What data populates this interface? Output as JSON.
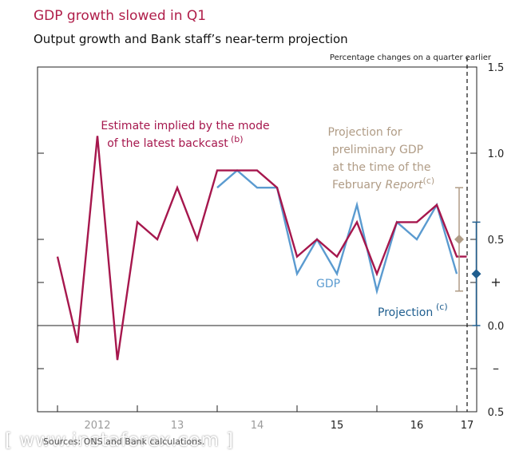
{
  "title": "GDP growth slowed in Q1",
  "subtitle": "Output growth and Bank staff’s near-term projection",
  "unit_note": "Percentage changes on a quarter earlier",
  "sources": "Sources: ONS and Bank calculations.",
  "watermark": "[ www.instaforex.com ]",
  "colors": {
    "backcast": "#a6174d",
    "gdp": "#5b9bd0",
    "feb_projection": "#b09c86",
    "projection": "#1f5e8f",
    "axis": "#222222"
  },
  "chart_data": {
    "type": "line",
    "title": "GDP growth slowed in Q1",
    "subtitle": "Output growth and Bank staff’s near-term projection",
    "ylabel": "Percentage changes on a quarter earlier",
    "ylim": [
      -0.5,
      1.5
    ],
    "yticks": [
      {
        "value": 1.5,
        "label": "1.5"
      },
      {
        "value": 1.0,
        "label": "1.0"
      },
      {
        "value": 0.5,
        "label": "0.5"
      },
      {
        "value": 0.25,
        "label": "+"
      },
      {
        "value": 0.0,
        "label": "0.0"
      },
      {
        "value": -0.25,
        "label": "–"
      },
      {
        "value": -0.5,
        "label": "0.5"
      }
    ],
    "xlim": [
      2011.75,
      2017.25
    ],
    "xticks": [
      {
        "value": 2012.5,
        "label": "2012"
      },
      {
        "value": 2013.5,
        "label": "13"
      },
      {
        "value": 2014.5,
        "label": "14"
      },
      {
        "value": 2015.5,
        "label": "15"
      },
      {
        "value": 2016.5,
        "label": "16"
      },
      {
        "value": 2017.0,
        "label": "17"
      }
    ],
    "grid": false,
    "projection_start": 2017.0,
    "series": [
      {
        "name": "Estimate implied by the mode of the latest backcast",
        "label_sup": "(b)",
        "x": [
          2012.0,
          2012.25,
          2012.5,
          2012.75,
          2013.0,
          2013.25,
          2013.5,
          2013.75,
          2014.0,
          2014.25,
          2014.5,
          2014.75,
          2015.0,
          2015.25,
          2015.5,
          2015.75,
          2016.0,
          2016.25,
          2016.5,
          2016.75,
          2017.0,
          2017.125
        ],
        "values": [
          0.4,
          -0.1,
          1.1,
          -0.2,
          0.6,
          0.5,
          0.8,
          0.5,
          0.9,
          0.9,
          0.9,
          0.8,
          0.4,
          0.5,
          0.4,
          0.6,
          0.3,
          0.6,
          0.6,
          0.7,
          0.4,
          0.4
        ]
      },
      {
        "name": "GDP",
        "x": [
          2014.0,
          2014.25,
          2014.5,
          2014.75,
          2015.0,
          2015.25,
          2015.5,
          2015.75,
          2016.0,
          2016.25,
          2016.5,
          2016.75,
          2017.0
        ],
        "values": [
          0.8,
          0.9,
          0.8,
          0.8,
          0.3,
          0.5,
          0.3,
          0.7,
          0.2,
          0.6,
          0.5,
          0.7,
          0.3
        ]
      }
    ],
    "projections": [
      {
        "name": "Projection for preliminary GDP at the time of the February Report",
        "label_sup": "(c)",
        "x": 2017.0,
        "value": 0.5,
        "range": [
          0.2,
          0.8
        ]
      },
      {
        "name": "Projection",
        "label_sup": "(c)",
        "x": 2017.125,
        "value": 0.3,
        "range": [
          0.0,
          0.6
        ]
      }
    ]
  }
}
